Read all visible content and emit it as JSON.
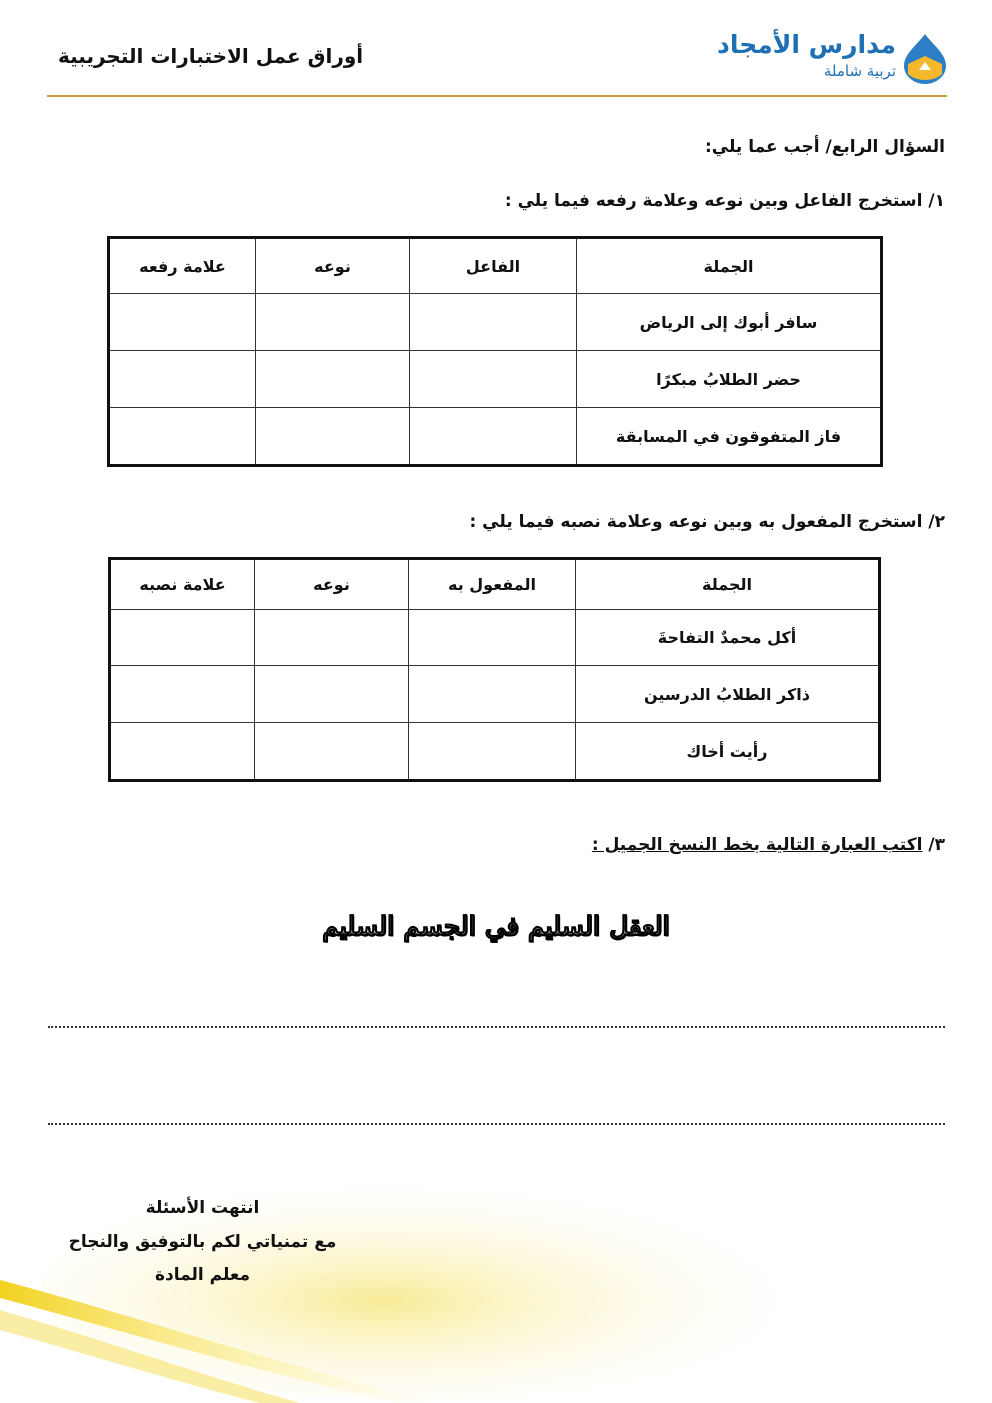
{
  "header": {
    "title": "أوراق عمل الاختبارات التجريبية",
    "logo_name": "مدارس الأمجاد",
    "logo_tagline": "تربية شاملة",
    "accent_color": "#c9a23c",
    "logo_color": "#1f6fb5"
  },
  "question_title": "السؤال الرابع/ أجب عما يلي:",
  "part1": {
    "prompt": "١/ استخرج الفاعل وبين نوعه وعلامة رفعه فيما يلي  :",
    "headers": [
      "الجملة",
      "الفاعل",
      "نوعه",
      "علامة رفعه"
    ],
    "rows": [
      "سافر أبوك إلى الرياض",
      "حضر الطلابُ مبكرًا",
      "فاز المتفوقون في المسابقة"
    ]
  },
  "part2": {
    "prompt": "٢/ استخرج المفعول به وبين نوعه وعلامة نصبه فيما يلي  :",
    "headers": [
      "الجملة",
      "المفعول به",
      "نوعه",
      "علامة نصبه"
    ],
    "rows": [
      "أكل محمدٌ التفاحةَ",
      "ذاكر الطلابُ الدرسين",
      "رأيت أخاك"
    ]
  },
  "part3": {
    "prompt_num": "٣/ ",
    "prompt": "اكتب العبارة التالية بخط النسخ الجميل :",
    "phrase": "العقل السليم في الجسم السليم"
  },
  "closing": {
    "line1": "انتهت الأسئلة",
    "line2": "مع تمنياتي لكم بالتوفيق والنجاح",
    "line3": "معلم المادة"
  }
}
